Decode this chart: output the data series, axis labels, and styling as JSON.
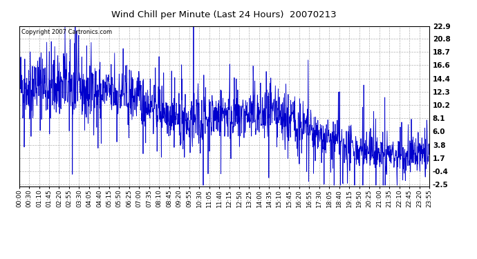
{
  "title": "Wind Chill per Minute (Last 24 Hours)  20070213",
  "copyright_text": "Copyright 2007 Cartronics.com",
  "line_color": "#0000CC",
  "background_color": "#ffffff",
  "plot_background": "#ffffff",
  "grid_color": "#b0b0b0",
  "yticks": [
    -2.5,
    -0.4,
    1.7,
    3.8,
    6.0,
    8.1,
    10.2,
    12.3,
    14.4,
    16.6,
    18.7,
    20.8,
    22.9
  ],
  "ylim": [
    -2.8,
    22.9
  ],
  "xtick_labels": [
    "00:00",
    "00:30",
    "01:10",
    "01:45",
    "02:20",
    "02:55",
    "03:30",
    "04:05",
    "04:40",
    "05:15",
    "05:50",
    "06:25",
    "07:00",
    "07:35",
    "08:10",
    "08:45",
    "09:20",
    "09:55",
    "10:30",
    "11:05",
    "11:40",
    "12:15",
    "12:50",
    "13:25",
    "14:00",
    "14:35",
    "15:10",
    "15:45",
    "16:20",
    "16:55",
    "17:30",
    "18:05",
    "18:40",
    "19:15",
    "19:50",
    "20:25",
    "21:00",
    "21:35",
    "22:10",
    "22:45",
    "23:20",
    "23:55"
  ],
  "n_points": 1440,
  "seed": 42
}
